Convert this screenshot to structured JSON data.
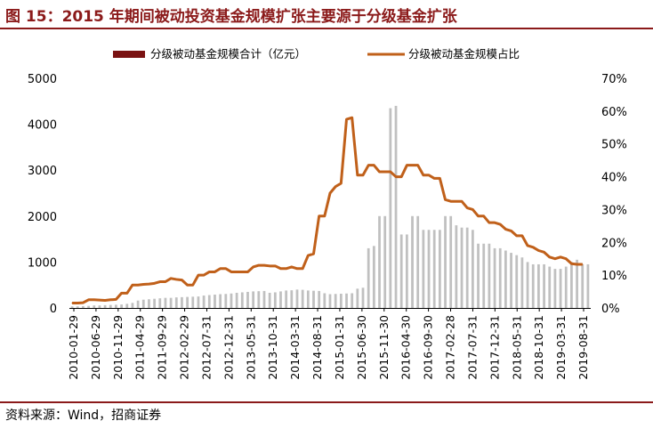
{
  "title": "图 15：2015 年期间被动投资基金规模扩张主要源于分级基金扩张",
  "source": "资料来源：Wind，招商证券",
  "colors": {
    "accent": "#8b1a1a",
    "bar": "#c0c0c0",
    "line": "#c0601a",
    "legend_bar": "#7a1212"
  },
  "chart_data": {
    "type": "bar+line",
    "x_tick_labels": [
      "2010-01-29",
      "2010-06-29",
      "2010-11-29",
      "2011-04-29",
      "2011-09-29",
      "2012-02-29",
      "2012-07-31",
      "2012-12-31",
      "2013-05-31",
      "2013-10-31",
      "2014-03-31",
      "2014-08-31",
      "2015-01-31",
      "2015-06-30",
      "2015-11-30",
      "2016-04-30",
      "2016-09-30",
      "2017-02-28",
      "2017-07-31",
      "2017-12-31",
      "2018-05-31",
      "2018-10-31",
      "2019-03-31",
      "2019-08-31"
    ],
    "y_left": {
      "ticks": [
        "0",
        "1000",
        "2000",
        "3000",
        "4000",
        "5000"
      ],
      "lim": [
        0,
        5000
      ]
    },
    "y_right": {
      "ticks": [
        "0%",
        "10%",
        "20%",
        "30%",
        "40%",
        "50%",
        "60%",
        "70%"
      ],
      "lim": [
        0,
        70
      ]
    },
    "grid": false,
    "legend_position": "top",
    "series": [
      {
        "name": "分级被动基金规模合计（亿元）",
        "type": "bar",
        "axis": "left",
        "values": [
          35,
          35,
          40,
          45,
          55,
          55,
          60,
          65,
          70,
          75,
          90,
          110,
          160,
          180,
          190,
          200,
          210,
          220,
          220,
          230,
          235,
          240,
          245,
          250,
          270,
          280,
          290,
          300,
          305,
          315,
          330,
          340,
          350,
          360,
          365,
          370,
          330,
          340,
          360,
          380,
          385,
          400,
          395,
          380,
          375,
          370,
          320,
          300,
          305,
          310,
          315,
          320,
          420,
          440,
          1300,
          1350,
          2000,
          2000,
          4350,
          4400,
          1600,
          1600,
          2000,
          2000,
          1700,
          1700,
          1700,
          1700,
          2000,
          2000,
          1800,
          1750,
          1750,
          1700,
          1400,
          1400,
          1400,
          1300,
          1300,
          1250,
          1200,
          1150,
          1100,
          1000,
          950,
          950,
          950,
          900,
          850,
          850,
          900,
          1000,
          1050,
          950,
          950
        ]
      },
      {
        "name": "分级被动基金规模占比",
        "type": "line",
        "axis": "right",
        "values": [
          1.5,
          1.5,
          1.6,
          2.5,
          2.5,
          2.4,
          2.3,
          2.5,
          2.6,
          4.5,
          4.5,
          7,
          7,
          7.2,
          7.3,
          7.5,
          8,
          8,
          9,
          8.7,
          8.5,
          7,
          7,
          10,
          10,
          11,
          11,
          12,
          12,
          11,
          11,
          11,
          11,
          12.5,
          13,
          13,
          12.8,
          12.8,
          12,
          12,
          12.5,
          12,
          12,
          16,
          16.5,
          28,
          28,
          35,
          37,
          38,
          57.5,
          58,
          40.5,
          40.5,
          43.5,
          43.5,
          41.5,
          41.5,
          41.5,
          40,
          40,
          43.5,
          43.5,
          43.5,
          40.5,
          40.5,
          39.5,
          39.5,
          33,
          32.5,
          32.5,
          32.5,
          30.5,
          30,
          28,
          28,
          26,
          26,
          25.5,
          24,
          23.5,
          22,
          22,
          19,
          18.5,
          17.5,
          17,
          15.5,
          15,
          15.5,
          15,
          13.5,
          13.3,
          13.3
        ]
      }
    ]
  }
}
